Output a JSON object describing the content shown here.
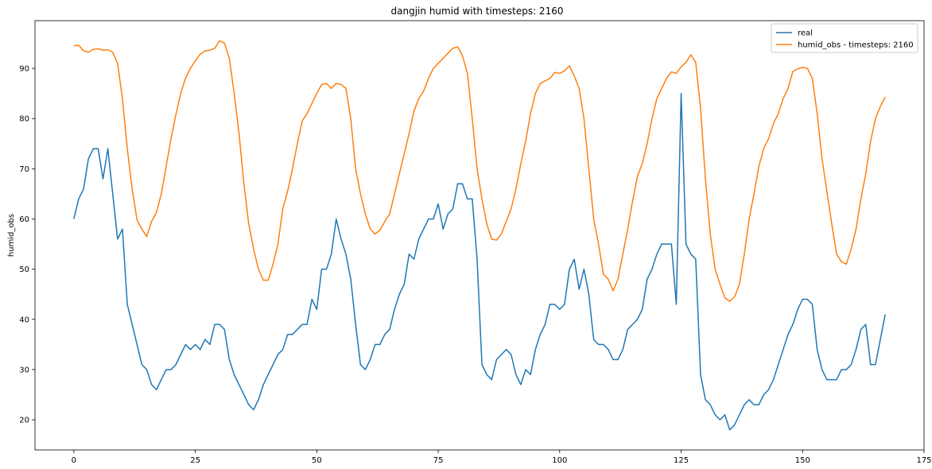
{
  "chart_data": {
    "type": "line",
    "title": "dangjin humid with timesteps: 2160",
    "xlabel": "",
    "ylabel": "humid_obs",
    "xlim": [
      -8,
      175
    ],
    "ylim": [
      14,
      99.5
    ],
    "xticks": [
      0,
      25,
      50,
      75,
      100,
      125,
      150,
      175
    ],
    "yticks": [
      20,
      30,
      40,
      50,
      60,
      70,
      80,
      90
    ],
    "grid": false,
    "legend": "top-right",
    "series": [
      {
        "name": "real",
        "color": "#1f77b4",
        "x": [
          0,
          1,
          2,
          3,
          4,
          5,
          6,
          7,
          8,
          9,
          10,
          11,
          12,
          13,
          14,
          15,
          16,
          17,
          18,
          19,
          20,
          21,
          22,
          23,
          24,
          25,
          26,
          27,
          28,
          29,
          30,
          31,
          32,
          33,
          34,
          35,
          36,
          37,
          38,
          39,
          40,
          41,
          42,
          43,
          44,
          45,
          46,
          47,
          48,
          49,
          50,
          51,
          52,
          53,
          54,
          55,
          56,
          57,
          58,
          59,
          60,
          61,
          62,
          63,
          64,
          65,
          66,
          67,
          68,
          69,
          70,
          71,
          72,
          73,
          74,
          75,
          76,
          77,
          78,
          79,
          80,
          81,
          82,
          83,
          84,
          85,
          86,
          87,
          88,
          89,
          90,
          91,
          92,
          93,
          94,
          95,
          96,
          97,
          98,
          99,
          100,
          101,
          102,
          103,
          104,
          105,
          106,
          107,
          108,
          109,
          110,
          111,
          112,
          113,
          114,
          115,
          116,
          117,
          118,
          119,
          120,
          121,
          122,
          123,
          124,
          125,
          126,
          127,
          128,
          129,
          130,
          131,
          132,
          133,
          134,
          135,
          136,
          137,
          138,
          139,
          140,
          141,
          142,
          143,
          144,
          145,
          146,
          147,
          148,
          149,
          150,
          151,
          152,
          153,
          154,
          155,
          156,
          157,
          158,
          159,
          160,
          161,
          162,
          163,
          164,
          165,
          166,
          167
        ],
        "values": [
          60,
          64,
          66,
          72,
          74,
          74,
          68,
          74,
          65,
          56,
          58,
          43,
          39,
          35,
          31,
          30,
          27,
          26,
          28,
          30,
          30,
          31,
          33,
          35,
          34,
          35,
          34,
          36,
          35,
          39,
          39,
          38,
          32,
          29,
          27,
          25,
          23,
          22,
          24,
          27,
          29,
          31,
          33,
          34,
          37,
          37,
          38,
          39,
          39,
          44,
          42,
          50,
          50,
          53,
          60,
          56,
          53,
          48,
          39,
          31,
          30,
          32,
          35,
          35,
          37,
          38,
          42,
          45,
          47,
          53,
          52,
          56,
          58,
          60,
          60,
          63,
          58,
          61,
          62,
          67,
          67,
          64,
          64,
          52,
          31,
          29,
          28,
          32,
          33,
          34,
          33,
          29,
          27,
          30,
          29,
          34,
          37,
          39,
          43,
          43,
          42,
          43,
          50,
          52,
          46,
          50,
          45,
          36,
          35,
          35,
          34,
          32,
          32,
          34,
          38,
          39,
          40,
          42,
          48,
          50,
          53,
          55,
          55,
          55,
          43,
          85,
          55,
          53,
          52,
          29,
          24,
          23,
          21,
          20,
          21,
          18,
          19,
          21,
          23,
          24,
          23,
          23,
          25,
          26,
          28,
          31,
          34,
          37,
          39,
          42,
          44,
          44,
          43,
          34,
          30,
          28,
          28,
          28,
          30,
          30,
          31,
          34,
          38,
          39,
          31,
          31,
          36,
          41
        ]
      },
      {
        "name": "humid_obs - timesteps: 2160",
        "color": "#ff7f0e",
        "x": [
          0,
          1,
          2,
          3,
          4,
          5,
          6,
          7,
          8,
          9,
          10,
          11,
          12,
          13,
          14,
          15,
          16,
          17,
          18,
          19,
          20,
          21,
          22,
          23,
          24,
          25,
          26,
          27,
          28,
          29,
          30,
          31,
          32,
          33,
          34,
          35,
          36,
          37,
          38,
          39,
          40,
          41,
          42,
          43,
          44,
          45,
          46,
          47,
          48,
          49,
          50,
          51,
          52,
          53,
          54,
          55,
          56,
          57,
          58,
          59,
          60,
          61,
          62,
          63,
          64,
          65,
          66,
          67,
          68,
          69,
          70,
          71,
          72,
          73,
          74,
          75,
          76,
          77,
          78,
          79,
          80,
          81,
          82,
          83,
          84,
          85,
          86,
          87,
          88,
          89,
          90,
          91,
          92,
          93,
          94,
          95,
          96,
          97,
          98,
          99,
          100,
          101,
          102,
          103,
          104,
          105,
          106,
          107,
          108,
          109,
          110,
          111,
          112,
          113,
          114,
          115,
          116,
          117,
          118,
          119,
          120,
          121,
          122,
          123,
          124,
          125,
          126,
          127,
          128,
          129,
          130,
          131,
          132,
          133,
          134,
          135,
          136,
          137,
          138,
          139,
          140,
          141,
          142,
          143,
          144,
          145,
          146,
          147,
          148,
          149,
          150,
          151,
          152,
          153,
          154,
          155,
          156,
          157,
          158,
          159,
          160,
          161,
          162,
          163,
          164,
          165,
          166,
          167
        ],
        "values": [
          94.5,
          94.6,
          93.5,
          93.2,
          93.8,
          93.9,
          93.6,
          93.7,
          93.2,
          91,
          84,
          74,
          66,
          59.8,
          58,
          56.5,
          59.5,
          61.3,
          65,
          70.5,
          76,
          80.8,
          85,
          88.1,
          90,
          91.5,
          92.8,
          93.5,
          93.6,
          94,
          95.5,
          95,
          92,
          85,
          77,
          67,
          59,
          54,
          50,
          47.8,
          47.8,
          51,
          55,
          62,
          65.5,
          70,
          75,
          79.5,
          81,
          83,
          85,
          86.8,
          87,
          86,
          87,
          86.8,
          86,
          80,
          70,
          65,
          61,
          58,
          57,
          57.8,
          59.5,
          61,
          65,
          69,
          73,
          77,
          81.5,
          84,
          85.5,
          88,
          90,
          91,
          92,
          93,
          94,
          94.3,
          92.5,
          89,
          80,
          70,
          64,
          59,
          56,
          55.8,
          57,
          59.5,
          62,
          66,
          71,
          75.5,
          81,
          85,
          87,
          87.5,
          88,
          89.2,
          89,
          89.5,
          90.5,
          88.5,
          86,
          80,
          70,
          60,
          55,
          49,
          48,
          45.7,
          48,
          53,
          58,
          63.5,
          68.5,
          71,
          75,
          80,
          84,
          86,
          88,
          89.3,
          89,
          90.3,
          91.2,
          92.7,
          91.2,
          82,
          68,
          57,
          50,
          47,
          44.3,
          43.6,
          44.5,
          47,
          53,
          60,
          65,
          70.5,
          74,
          76,
          79,
          81,
          84,
          86,
          89.4,
          89.9,
          90.2,
          90,
          88,
          81,
          72,
          65.5,
          59,
          53,
          51.5,
          51,
          54,
          58,
          64,
          69,
          75.5,
          80,
          82.4,
          84.3
        ]
      }
    ]
  }
}
